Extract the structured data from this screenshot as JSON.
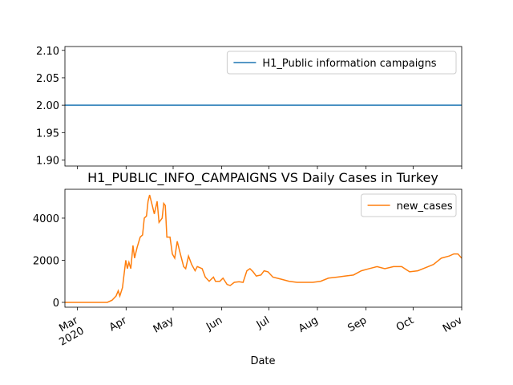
{
  "chart_data": [
    {
      "type": "line",
      "x": [
        -8,
        245
      ],
      "xlim": [
        -8,
        245
      ],
      "ylim": [
        1.889,
        2.107
      ],
      "yticks": [
        {
          "value": 1.9,
          "label": "1.90"
        },
        1.95,
        {
          "value": 2.0,
          "label": "2.00"
        },
        2.05,
        {
          "value": 2.1,
          "label": "2.10"
        }
      ],
      "legend": "upper right",
      "series": [
        {
          "name": "H1_Public information campaigns",
          "color": "#1f77b4",
          "values": [
            2,
            2
          ]
        }
      ]
    },
    {
      "type": "line",
      "title": "H1_PUBLIC_INFO_CAMPAIGNS VS Daily Cases in Turkey",
      "x_label": "Date",
      "x": [
        -8,
        19,
        22,
        24.6,
        26,
        27,
        28.7,
        30.8,
        31.8,
        32.8,
        34,
        35.4,
        36.4,
        38,
        40,
        41.5,
        42.6,
        44,
        45,
        46,
        47.7,
        49,
        50.8,
        52,
        54,
        55,
        56,
        57,
        59,
        60.5,
        62,
        63.6,
        65.6,
        67.7,
        69,
        70.8,
        72.8,
        75,
        76.4,
        79.5,
        81.5,
        84,
        86.7,
        88,
        90.8,
        92.8,
        95.4,
        97.4,
        100,
        103,
        105.6,
        108,
        110,
        112,
        114,
        117,
        119,
        121.5,
        124.6,
        130,
        135,
        140,
        145,
        150,
        155,
        160,
        165.6,
        170.8,
        176,
        181,
        186,
        191,
        196,
        201.5,
        206.7,
        211.8,
        217,
        222,
        227,
        232,
        237,
        240,
        242.6,
        245
      ],
      "xlim": [
        -8,
        245
      ],
      "xticks": [
        {
          "value": 0,
          "label": "Mar\n2020"
        },
        {
          "value": 31,
          "label": "Apr"
        },
        {
          "value": 61,
          "label": "May"
        },
        {
          "value": 92,
          "label": "Jun"
        },
        {
          "value": 122,
          "label": "Jul"
        },
        {
          "value": 153,
          "label": "Aug"
        },
        {
          "value": 184,
          "label": "Sep"
        },
        {
          "value": 214,
          "label": "Oct"
        },
        {
          "value": 245,
          "label": "Nov"
        }
      ],
      "ylim": [
        -230,
        5370
      ],
      "yticks": [
        0,
        2000,
        4000
      ],
      "legend": "upper right",
      "series": [
        {
          "name": "new_cases",
          "color": "#ff7f0e",
          "values": [
            0,
            0,
            100,
            300,
            550,
            300,
            700,
            2000,
            1600,
            1900,
            1600,
            2700,
            2100,
            2600,
            3100,
            3200,
            4000,
            4100,
            4800,
            5100,
            4600,
            4200,
            4800,
            3800,
            4000,
            4700,
            4600,
            3100,
            3100,
            2300,
            2100,
            2900,
            2300,
            1700,
            1600,
            2200,
            1800,
            1500,
            1700,
            1600,
            1200,
            1000,
            1200,
            1000,
            1000,
            1150,
            850,
            800,
            950,
            980,
            950,
            1500,
            1600,
            1450,
            1250,
            1300,
            1500,
            1450,
            1200,
            1100,
            1000,
            950,
            950,
            950,
            1000,
            1150,
            1200,
            1250,
            1300,
            1500,
            1600,
            1700,
            1600,
            1700,
            1700,
            1450,
            1500,
            1650,
            1800,
            2100,
            2200,
            2300,
            2300,
            2100
          ]
        }
      ]
    }
  ]
}
